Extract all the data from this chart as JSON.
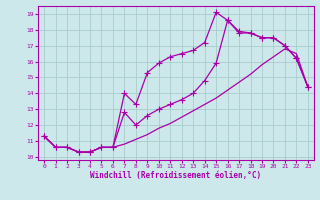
{
  "xlabel": "Windchill (Refroidissement éolien,°C)",
  "bg_color": "#cce8ea",
  "grid_color": "#aacccc",
  "line_color": "#aa00aa",
  "xlim": [
    -0.5,
    23.5
  ],
  "ylim": [
    9.8,
    19.5
  ],
  "xticks": [
    0,
    1,
    2,
    3,
    4,
    5,
    6,
    7,
    8,
    9,
    10,
    11,
    12,
    13,
    14,
    15,
    16,
    17,
    18,
    19,
    20,
    21,
    22,
    23
  ],
  "yticks": [
    10,
    11,
    12,
    13,
    14,
    15,
    16,
    17,
    18,
    19
  ],
  "line1_x": [
    0,
    1,
    2,
    3,
    4,
    5,
    6,
    7,
    8,
    9,
    10,
    11,
    12,
    13,
    14,
    15,
    16,
    17,
    18,
    19,
    20,
    21,
    22,
    23
  ],
  "line1_y": [
    11.3,
    10.6,
    10.6,
    10.3,
    10.3,
    10.6,
    10.6,
    14.0,
    13.3,
    15.3,
    15.9,
    16.3,
    16.5,
    16.7,
    17.2,
    19.1,
    18.6,
    17.9,
    17.8,
    17.5,
    17.5,
    17.0,
    16.2,
    14.4
  ],
  "line2_x": [
    0,
    1,
    2,
    3,
    4,
    5,
    6,
    7,
    8,
    9,
    10,
    11,
    12,
    13,
    14,
    15,
    16,
    17,
    18,
    19,
    20,
    21,
    22,
    23
  ],
  "line2_y": [
    11.3,
    10.6,
    10.6,
    10.3,
    10.3,
    10.6,
    10.6,
    12.8,
    12.0,
    12.6,
    13.0,
    13.3,
    13.6,
    14.0,
    14.8,
    15.9,
    18.6,
    17.8,
    17.8,
    17.5,
    17.5,
    17.0,
    16.2,
    14.4
  ],
  "line3_x": [
    0,
    1,
    2,
    3,
    4,
    5,
    6,
    7,
    8,
    9,
    10,
    11,
    12,
    13,
    14,
    15,
    16,
    17,
    18,
    19,
    20,
    21,
    22,
    23
  ],
  "line3_y": [
    11.3,
    10.6,
    10.6,
    10.3,
    10.3,
    10.6,
    10.6,
    10.8,
    11.1,
    11.4,
    11.8,
    12.1,
    12.5,
    12.9,
    13.3,
    13.7,
    14.2,
    14.7,
    15.2,
    15.8,
    16.3,
    16.8,
    16.5,
    14.4
  ],
  "marker": "+",
  "markersize": 4,
  "linewidth": 0.9
}
